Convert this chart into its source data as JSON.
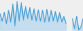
{
  "values": [
    35,
    20,
    38,
    15,
    42,
    18,
    55,
    10,
    60,
    20,
    58,
    22,
    50,
    25,
    48,
    22,
    45,
    20,
    43,
    20,
    42,
    18,
    44,
    19,
    42,
    20,
    40,
    18,
    38,
    18,
    30,
    15,
    null,
    null,
    25,
    5,
    30,
    2,
    8,
    25
  ],
  "line_color": "#4b9fd5",
  "fill_color": "#a8d4f0",
  "background_color": "#efefef",
  "linewidth": 0.9
}
